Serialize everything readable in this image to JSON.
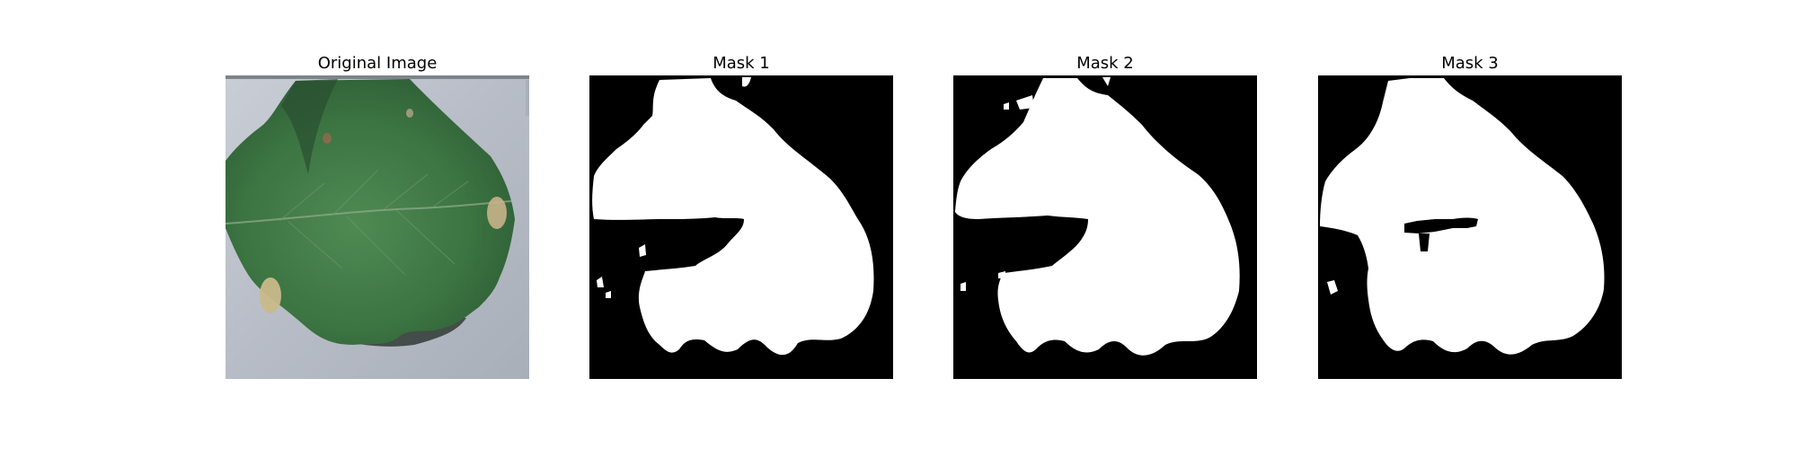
{
  "figure": {
    "panels": [
      {
        "title": "Original Image",
        "kind": "photo"
      },
      {
        "title": "Mask 1",
        "kind": "binary-mask"
      },
      {
        "title": "Mask 2",
        "kind": "binary-mask"
      },
      {
        "title": "Mask 3",
        "kind": "binary-mask"
      }
    ]
  },
  "colors": {
    "background": "#ffffff",
    "mask_foreground": "#ffffff",
    "mask_background": "#000000",
    "leaf": "#3f7a45",
    "surface": "#b9bec7"
  }
}
